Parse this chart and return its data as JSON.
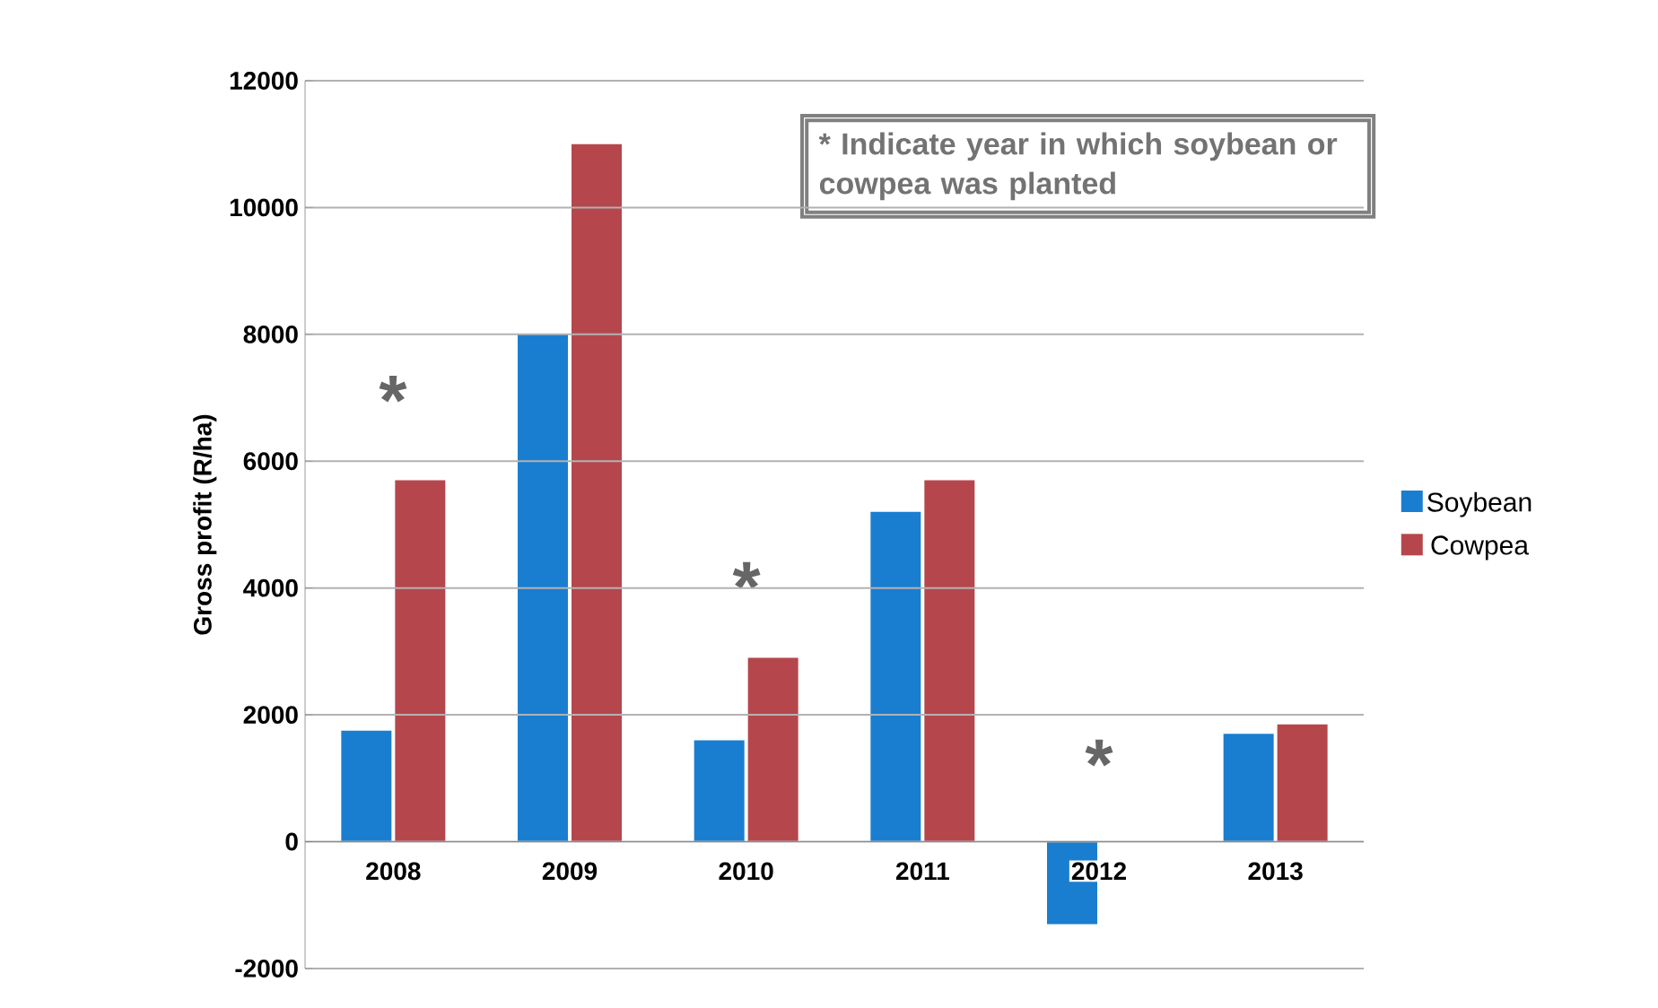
{
  "chart_data": {
    "type": "bar",
    "ylabel": "Gross profit (R/ha)",
    "categories": [
      "2008",
      "2009",
      "2010",
      "2011",
      "2012",
      "2013"
    ],
    "series": [
      {
        "name": "Soybean",
        "color": "#1a7ed0",
        "values": [
          1750,
          8000,
          1600,
          5200,
          -1300,
          1700
        ]
      },
      {
        "name": "Cowpea",
        "color": "#b5474c",
        "values": [
          5700,
          11000,
          2900,
          5700,
          0,
          1850
        ]
      }
    ],
    "ylim": [
      -2000,
      12000
    ],
    "yticks": [
      -2000,
      0,
      2000,
      4000,
      6000,
      8000,
      10000,
      12000
    ],
    "grid": "y",
    "legend": "right",
    "annotations": [
      "*",
      "*",
      "*",
      "* Indicate year in which soybean or cowpea was planted"
    ]
  }
}
